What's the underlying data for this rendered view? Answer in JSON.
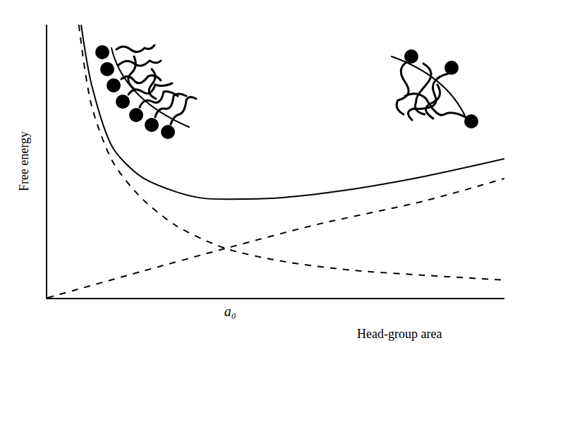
{
  "chart_data": {
    "type": "line",
    "x_label": "Head-group area",
    "y_label": "Free energy",
    "xlim": [
      0,
      10
    ],
    "ylim": [
      0,
      10
    ],
    "xticks": [
      {
        "value": 4,
        "label": "a₀"
      }
    ],
    "yticks": [],
    "tick_labels": "x",
    "grid": false,
    "series": [
      {
        "color": "#000000",
        "line_style": "solid",
        "x": [
          0.74,
          0.97,
          1.44,
          2.05,
          2.82,
          3.44,
          4.37,
          5.14,
          6.68,
          8.23,
          10
        ],
        "values": [
          10,
          7.8,
          5.48,
          4.44,
          3.88,
          3.64,
          3.62,
          3.67,
          3.98,
          4.44,
          5.09
        ]
      },
      {
        "color": "#000000",
        "line_style": "dashed",
        "x": [
          0.69,
          0.97,
          1.44,
          2.05,
          2.82,
          3.9,
          5.14,
          6.68,
          8.23,
          10
        ],
        "values": [
          10,
          7.03,
          4.96,
          3.67,
          2.64,
          1.81,
          1.34,
          1.01,
          0.83,
          0.65
        ]
      },
      {
        "color": "#000000",
        "line_style": "dashed",
        "x": [
          0,
          2.05,
          3.9,
          5.91,
          8.23,
          10
        ],
        "values": [
          0,
          0.96,
          1.81,
          2.69,
          3.54,
          4.37
        ]
      }
    ]
  }
}
